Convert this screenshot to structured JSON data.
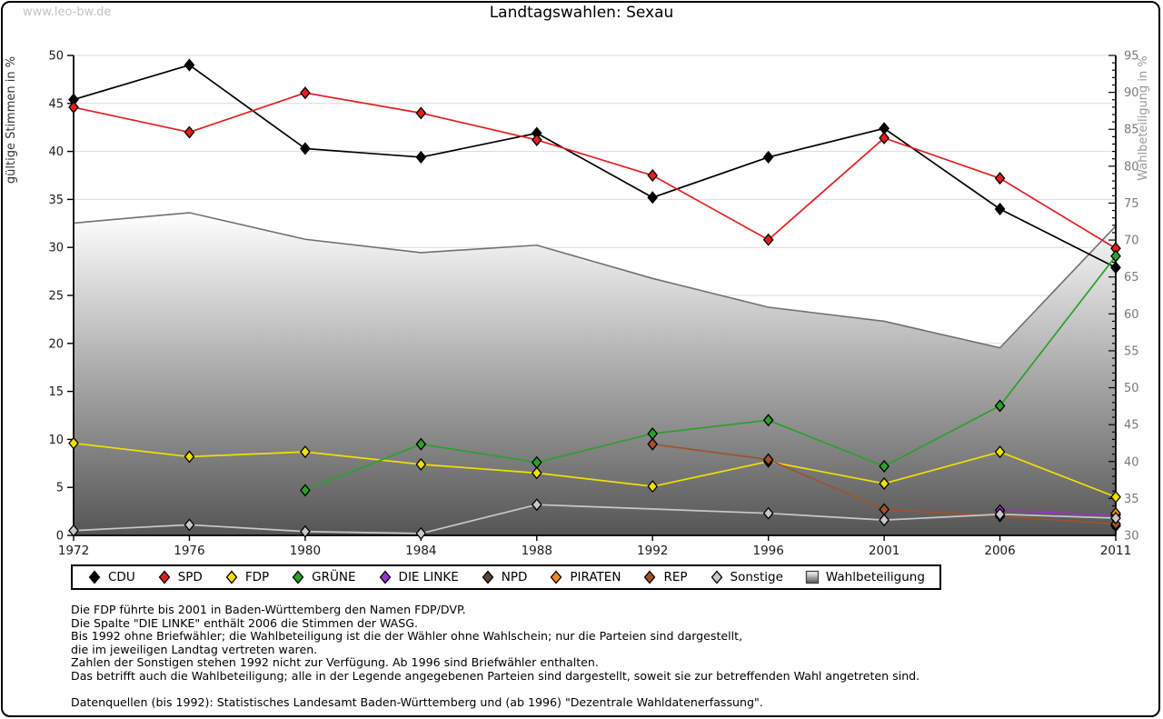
{
  "page": {
    "watermark": "www.leo-bw.de",
    "title": "Landtagswahlen: Sexau"
  },
  "chart_data": {
    "type": "line",
    "title": "Landtagswahlen: Sexau",
    "categories": [
      "1972",
      "1976",
      "1980",
      "1984",
      "1988",
      "1992",
      "1996",
      "2001",
      "2006",
      "2011"
    ],
    "left_axis": {
      "label": "gültige Stimmen in %",
      "min": 0,
      "max": 50,
      "step": 5
    },
    "right_axis": {
      "label": "Wahlbeteiligung in %",
      "min": 30,
      "max": 95,
      "step": 5,
      "minor_step": 1
    },
    "grid": true,
    "legend_position": "bottom",
    "series": [
      {
        "name": "CDU",
        "color": "#000000",
        "axis": "left",
        "kind": "line",
        "values": [
          45.4,
          49.0,
          40.3,
          39.4,
          41.9,
          35.2,
          39.4,
          42.4,
          34.0,
          27.9
        ]
      },
      {
        "name": "SPD",
        "color": "#e02020",
        "axis": "left",
        "kind": "line",
        "values": [
          44.6,
          42.0,
          46.1,
          44.0,
          41.2,
          37.5,
          30.8,
          41.4,
          37.2,
          29.9
        ]
      },
      {
        "name": "FDP",
        "color": "#f0e000",
        "axis": "left",
        "kind": "line",
        "values": [
          9.6,
          8.2,
          8.7,
          7.4,
          6.5,
          5.1,
          7.7,
          5.4,
          8.7,
          4.0
        ]
      },
      {
        "name": "GRÜNE",
        "color": "#2ca02c",
        "axis": "left",
        "kind": "line",
        "values": [
          null,
          null,
          4.7,
          9.5,
          7.6,
          10.6,
          12.0,
          7.2,
          13.5,
          29.1
        ]
      },
      {
        "name": "DIE LINKE",
        "color": "#9933cc",
        "axis": "left",
        "kind": "line",
        "values": [
          null,
          null,
          null,
          null,
          null,
          null,
          null,
          null,
          2.6,
          2.1
        ]
      },
      {
        "name": "NPD",
        "color": "#574639",
        "axis": "left",
        "kind": "line",
        "values": [
          null,
          null,
          null,
          null,
          null,
          null,
          null,
          null,
          null,
          1.0
        ]
      },
      {
        "name": "PIRATEN",
        "color": "#f28a1e",
        "axis": "left",
        "kind": "line",
        "values": [
          null,
          null,
          null,
          null,
          null,
          null,
          null,
          null,
          null,
          2.3
        ]
      },
      {
        "name": "REP",
        "color": "#a0522d",
        "axis": "left",
        "kind": "line",
        "values": [
          null,
          null,
          null,
          null,
          null,
          9.5,
          7.9,
          2.7,
          2.0,
          1.2
        ]
      },
      {
        "name": "Sonstige",
        "color": "#c8c8c8",
        "axis": "left",
        "kind": "line",
        "values": [
          0.5,
          1.1,
          0.4,
          0.2,
          3.2,
          null,
          2.3,
          1.6,
          2.2,
          1.8
        ]
      },
      {
        "name": "Wahlbeteiligung",
        "color": "#707070",
        "axis": "right",
        "kind": "area",
        "values": [
          72.3,
          73.7,
          70.1,
          68.3,
          69.3,
          64.8,
          60.9,
          59.0,
          55.4,
          71.9
        ]
      }
    ]
  },
  "notes": {
    "lines": [
      "Die FDP führte bis 2001 in Baden-Württemberg den Namen FDP/DVP.",
      "Die Spalte \"DIE LINKE\" enthält 2006 die Stimmen der WASG.",
      "Bis 1992 ohne Briefwähler; die Wahlbeteiligung ist die der Wähler ohne Wahlschein; nur die Parteien sind dargestellt,",
      "die im jeweiligen Landtag vertreten waren.",
      "Zahlen der Sonstigen stehen 1992 nicht zur Verfügung. Ab 1996 sind Briefwähler enthalten.",
      "Das betrifft auch die Wahlbeteiligung; alle in der Legende angegebenen Parteien sind dargestellt, soweit sie zur betreffenden Wahl angetreten sind.",
      "",
      "Datenquellen (bis 1992): Statistisches Landesamt Baden-Württemberg und (ab 1996) \"Dezentrale Wahldatenerfassung\"."
    ]
  }
}
